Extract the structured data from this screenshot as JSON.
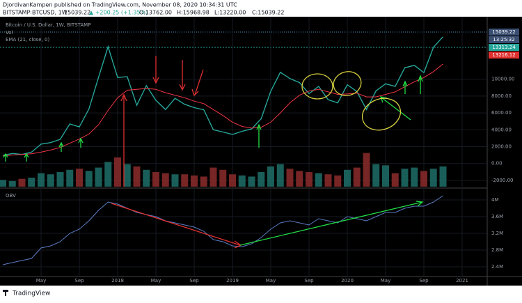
{
  "header": {
    "published": "DjordivanKampen published on TradingView.com, November 08, 2020 10:34:31 UTC",
    "symbol": "BITSTAMP:BTCUSD, 1W",
    "last": "15039.22",
    "change": "▲ +200.25 (+1.35%)",
    "open": "O:13762.00",
    "high": "H:15968.98",
    "low": "L:13220.00",
    "close": "C:15039.22"
  },
  "price_labels": {
    "last": "15039.22",
    "countdown": "13:25:32",
    "green": "13313.24",
    "red": "13216.12"
  },
  "footer": "TradingView",
  "chart_data": [
    {
      "type": "line",
      "title": "Bitcoin / U.S. Dollar, 1W, BITSTAMP",
      "categories": [
        null,
        null,
        null,
        null,
        "May",
        null,
        null,
        null,
        "Sep",
        null,
        null,
        null,
        "2018",
        null,
        null,
        null,
        "May",
        null,
        null,
        null,
        "Sep",
        null,
        null,
        null,
        "2019",
        null,
        null,
        null,
        "May",
        null,
        null,
        null,
        "Sep",
        null,
        null,
        null,
        "2020",
        null,
        null,
        null,
        "May",
        null,
        null,
        null,
        "Sep",
        null,
        null,
        null,
        "2021"
      ],
      "series": [
        {
          "name": "Bitcoin / U.S. Dollar, 1W, BITSTAMP",
          "color": "#26a69a",
          "values": [
            970,
            1190,
            1080,
            1350,
            2300,
            2480,
            2870,
            4700,
            4340,
            6470,
            10200,
            13860,
            10200,
            10300,
            6900,
            9240,
            7500,
            6400,
            7730,
            7030,
            6630,
            6370,
            4000,
            3740,
            3450,
            3820,
            4100,
            5320,
            8570,
            10820,
            10080,
            9600,
            8290,
            9150,
            7560,
            7190,
            9350,
            8540,
            6410,
            8620,
            9460,
            9140,
            11350,
            11650,
            10780,
            13800,
            15039.22,
            null,
            null
          ]
        },
        {
          "name": "EMA (21, close, 0)",
          "color": "#f23645",
          "values": [
            900,
            1000,
            1080,
            1150,
            1350,
            1600,
            1900,
            2400,
            2900,
            3500,
            4600,
            6300,
            7800,
            8700,
            8800,
            8900,
            8800,
            8400,
            8100,
            7800,
            7400,
            7100,
            6400,
            5700,
            4900,
            4400,
            4200,
            4300,
            4900,
            6000,
            7200,
            8100,
            8600,
            8800,
            8500,
            8200,
            8250,
            8350,
            7900,
            7900,
            8200,
            8500,
            9100,
            9700,
            10200,
            10900,
            11800,
            null,
            null
          ]
        },
        {
          "name": "Vol",
          "color": "#26a69a",
          "axis": "y2",
          "values": [
            60,
            50,
            70,
            80,
            120,
            110,
            130,
            150,
            160,
            140,
            170,
            220,
            260,
            200,
            180,
            150,
            130,
            120,
            110,
            110,
            100,
            90,
            170,
            150,
            110,
            100,
            90,
            130,
            180,
            200,
            160,
            140,
            130,
            120,
            110,
            100,
            150,
            170,
            300,
            200,
            190,
            120,
            160,
            170,
            140,
            160,
            180,
            null,
            null
          ]
        }
      ],
      "ylim": [
        -2750,
        17250
      ],
      "yticks": [
        {
          "value": -2000,
          "label": "-2000.00"
        },
        {
          "value": 0,
          "label": "0.00"
        },
        {
          "value": 2000,
          "label": "2000.00"
        },
        {
          "value": 4000,
          "label": "4000.00"
        },
        {
          "value": 6000,
          "label": "6000.00"
        },
        {
          "value": 8000,
          "label": "8000.00"
        },
        {
          "value": 10000,
          "label": "10000.00"
        }
      ],
      "y2lim": [
        0,
        1500
      ],
      "grid": true
    },
    {
      "type": "line",
      "title": "OBV",
      "series": [
        {
          "name": "OBV",
          "color": "#5b7cc4",
          "values": [
            2.45,
            2.5,
            2.55,
            2.6,
            2.85,
            2.9,
            3.0,
            3.2,
            3.3,
            3.5,
            3.75,
            3.95,
            3.9,
            3.8,
            3.7,
            3.65,
            3.6,
            3.5,
            3.45,
            3.4,
            3.35,
            3.25,
            3.05,
            3.0,
            2.9,
            2.88,
            2.95,
            3.1,
            3.3,
            3.45,
            3.5,
            3.45,
            3.4,
            3.55,
            3.5,
            3.45,
            3.6,
            3.55,
            3.5,
            3.6,
            3.7,
            3.7,
            3.8,
            3.85,
            3.85,
            3.95,
            4.1,
            null,
            null
          ]
        }
      ],
      "ylim": [
        2.2,
        4.25
      ],
      "yticks": [
        {
          "value": 2.4,
          "label": "2.4M"
        },
        {
          "value": 2.8,
          "label": "2.8M"
        },
        {
          "value": 3.2,
          "label": "3.2M"
        },
        {
          "value": 3.6,
          "label": "3.6M"
        },
        {
          "value": 4.0,
          "label": "4M"
        }
      ],
      "grid": true
    }
  ]
}
